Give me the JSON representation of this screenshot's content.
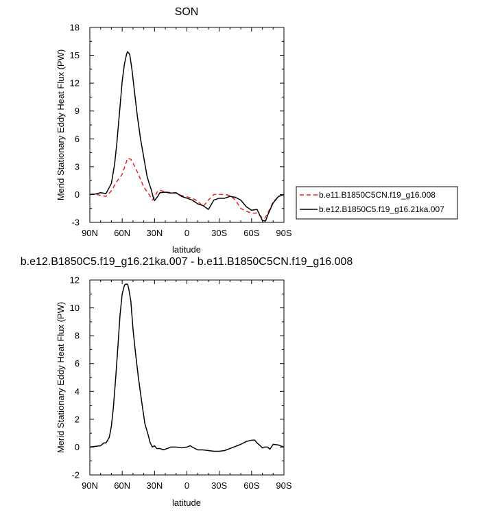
{
  "chart_data": [
    {
      "type": "line",
      "title": "SON",
      "xlabel": "latitude",
      "ylabel": "Merid Stationary Eddy Heat Flux (PW)",
      "xlim": [
        90,
        -90
      ],
      "ylim": [
        -3,
        18
      ],
      "xticks": [
        90,
        60,
        30,
        0,
        -30,
        -60,
        -90
      ],
      "xtick_labels": [
        "90N",
        "60N",
        "30N",
        "0",
        "30S",
        "60S",
        "90S"
      ],
      "yticks": [
        -3,
        0,
        3,
        6,
        9,
        12,
        15,
        18
      ],
      "ytick_labels": [
        "-3",
        "0",
        "3",
        "6",
        "9",
        "12",
        "15",
        "18"
      ],
      "grid": false,
      "legend_position": "right",
      "series": [
        {
          "name": "b.e11.B1850C5CN.f19_g16.008",
          "color": "#e8211d",
          "style": "dashed",
          "x": [
            90,
            85,
            80,
            75,
            70,
            65,
            60,
            57,
            55,
            52,
            50,
            45,
            40,
            35,
            32,
            30,
            27,
            25,
            20,
            15,
            10,
            5,
            0,
            -5,
            -10,
            -15,
            -20,
            -25,
            -30,
            -35,
            -40,
            -45,
            -50,
            -55,
            -60,
            -65,
            -70,
            -72,
            -75,
            -80,
            -85,
            -90
          ],
          "y": [
            0.0,
            0.05,
            -0.1,
            -0.2,
            0.4,
            1.4,
            2.2,
            3.2,
            3.9,
            3.8,
            3.4,
            2.2,
            0.8,
            0.0,
            -0.6,
            -0.3,
            0.4,
            0.45,
            0.3,
            0.2,
            0.15,
            -0.1,
            -0.25,
            -0.4,
            -0.7,
            -1.3,
            -0.6,
            0.0,
            0.0,
            0.0,
            -0.1,
            -0.6,
            -1.5,
            -1.8,
            -2.0,
            -2.0,
            -2.5,
            -2.6,
            -2.0,
            -0.8,
            -0.2,
            0.0
          ]
        },
        {
          "name": "b.e12.B1850C5.f19_g16.21ka.007",
          "color": "#000000",
          "style": "solid",
          "x": [
            90,
            85,
            80,
            75,
            70,
            67,
            65,
            62,
            60,
            58,
            56,
            55,
            53,
            51,
            49,
            46,
            43,
            40,
            37,
            35,
            33,
            31,
            30,
            27,
            25,
            20,
            15,
            10,
            5,
            0,
            -5,
            -10,
            -15,
            -20,
            -25,
            -30,
            -35,
            -40,
            -45,
            -50,
            -55,
            -60,
            -65,
            -68,
            -70,
            -73,
            -75,
            -80,
            -85,
            -90
          ],
          "y": [
            0.0,
            0.05,
            0.2,
            0.1,
            1.2,
            3.3,
            5.5,
            9.5,
            12.2,
            14.0,
            15.1,
            15.4,
            15.1,
            13.5,
            11.5,
            8.5,
            6.0,
            4.0,
            2.0,
            1.2,
            0.5,
            -0.4,
            -0.65,
            -0.2,
            0.2,
            0.25,
            0.15,
            0.2,
            -0.2,
            -0.4,
            -0.6,
            -1.0,
            -1.2,
            -1.6,
            -0.6,
            -0.4,
            -0.4,
            -0.2,
            -0.3,
            -0.6,
            -1.3,
            -1.7,
            -1.6,
            -2.3,
            -2.8,
            -2.85,
            -2.2,
            -0.9,
            -0.2,
            0.0
          ]
        }
      ]
    },
    {
      "type": "line",
      "title": "b.e12.B1850C5.f19_g16.21ka.007 - b.e11.B1850C5CN.f19_g16.008",
      "xlabel": "latitude",
      "ylabel": "Merid Stationary Eddy Heat Flux (PW)",
      "xlim": [
        90,
        -90
      ],
      "ylim": [
        -2,
        12
      ],
      "xticks": [
        90,
        60,
        30,
        0,
        -30,
        -60,
        -90
      ],
      "xtick_labels": [
        "90N",
        "60N",
        "30N",
        "0",
        "30S",
        "60S",
        "90S"
      ],
      "yticks": [
        -2,
        0,
        2,
        4,
        6,
        8,
        10,
        12
      ],
      "ytick_labels": [
        "-2",
        "0",
        "2",
        "4",
        "6",
        "8",
        "10",
        "12"
      ],
      "grid": false,
      "series": [
        {
          "color": "#000000",
          "style": "solid",
          "x": [
            90,
            85,
            80,
            77,
            75,
            72,
            70,
            68,
            66,
            64,
            62,
            60,
            58,
            57,
            55,
            54,
            52,
            50,
            48,
            45,
            42,
            39,
            36,
            34,
            32,
            30,
            28,
            25,
            22,
            18,
            15,
            10,
            5,
            0,
            -3,
            -5,
            -10,
            -15,
            -20,
            -25,
            -30,
            -35,
            -40,
            -45,
            -50,
            -55,
            -60,
            -63,
            -65,
            -68,
            -70,
            -72,
            -75,
            -77,
            -80,
            -85,
            -90
          ],
          "y": [
            0.0,
            0.05,
            0.1,
            0.3,
            0.3,
            0.7,
            1.5,
            3.0,
            5.0,
            7.2,
            9.5,
            11.0,
            11.6,
            11.7,
            11.7,
            11.4,
            10.5,
            8.5,
            7.0,
            5.0,
            3.3,
            1.7,
            0.9,
            0.3,
            0.0,
            0.1,
            -0.1,
            -0.1,
            -0.2,
            -0.1,
            0.0,
            0.0,
            -0.05,
            0.0,
            0.1,
            0.0,
            -0.2,
            -0.2,
            -0.25,
            -0.3,
            -0.3,
            -0.25,
            -0.1,
            0.05,
            0.2,
            0.4,
            0.5,
            0.5,
            0.3,
            0.1,
            -0.05,
            0.0,
            0.0,
            -0.15,
            0.2,
            0.15,
            0.0
          ]
        }
      ]
    }
  ]
}
